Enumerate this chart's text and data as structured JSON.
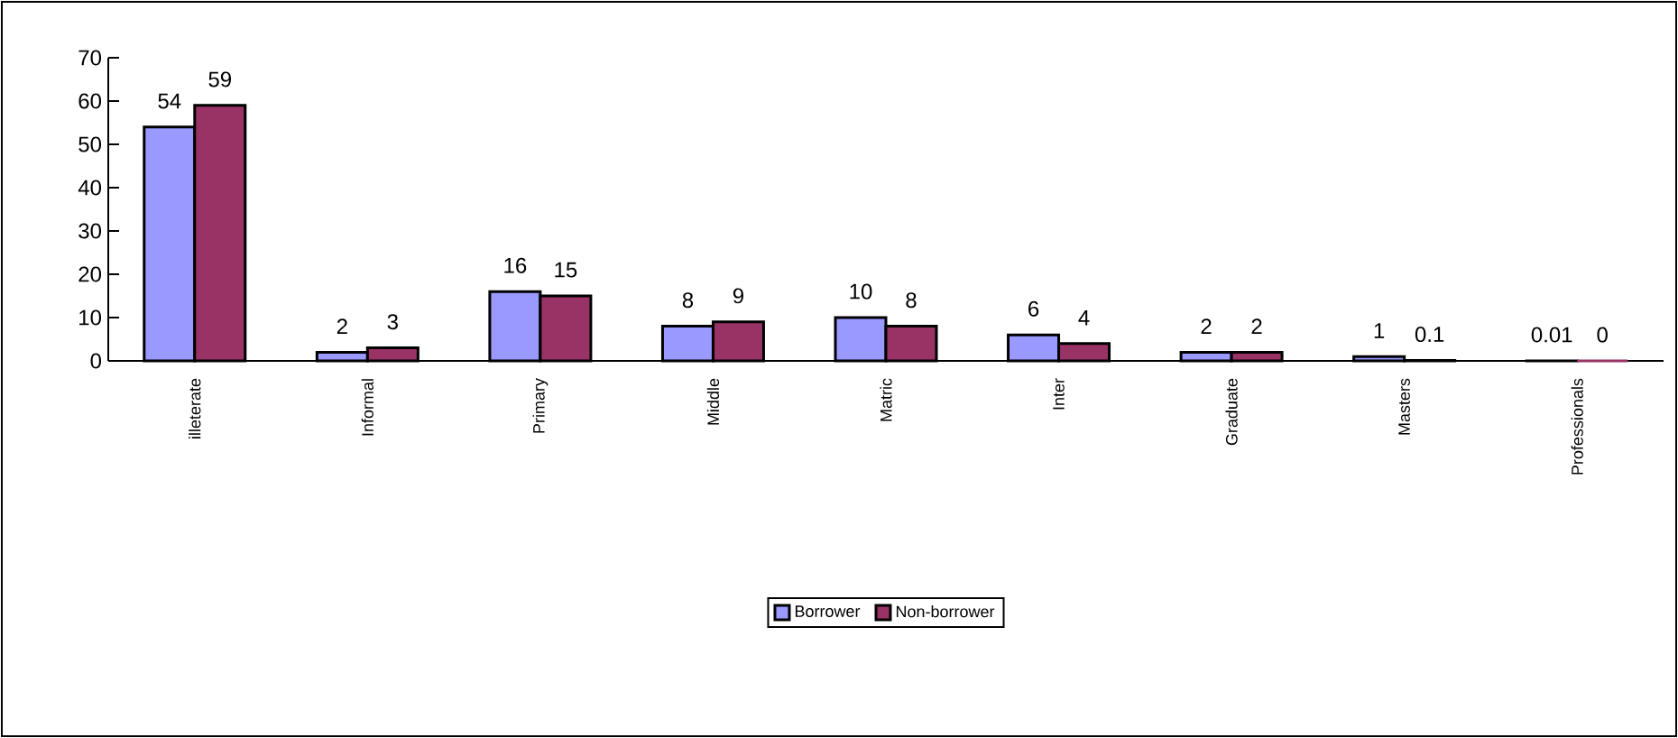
{
  "chart_data": {
    "type": "bar",
    "categories": [
      "illeterate",
      "Informal",
      "Primary",
      "Middle",
      "Matric",
      "Inter",
      "Graduate",
      "Masters",
      "Professionals"
    ],
    "series": [
      {
        "name": "Borrower",
        "color": "#9999ff",
        "values": [
          54,
          2,
          16,
          8,
          10,
          6,
          2,
          1,
          0.01
        ]
      },
      {
        "name": "Non-borrower",
        "color": "#993366",
        "values": [
          59,
          3,
          15,
          9,
          8,
          4,
          2,
          0.1,
          0
        ]
      }
    ],
    "ylim": [
      0,
      70
    ],
    "yticks": [
      0,
      10,
      20,
      30,
      40,
      50,
      60,
      70
    ],
    "data_labels": true,
    "legend": "bottom",
    "grid": false
  }
}
